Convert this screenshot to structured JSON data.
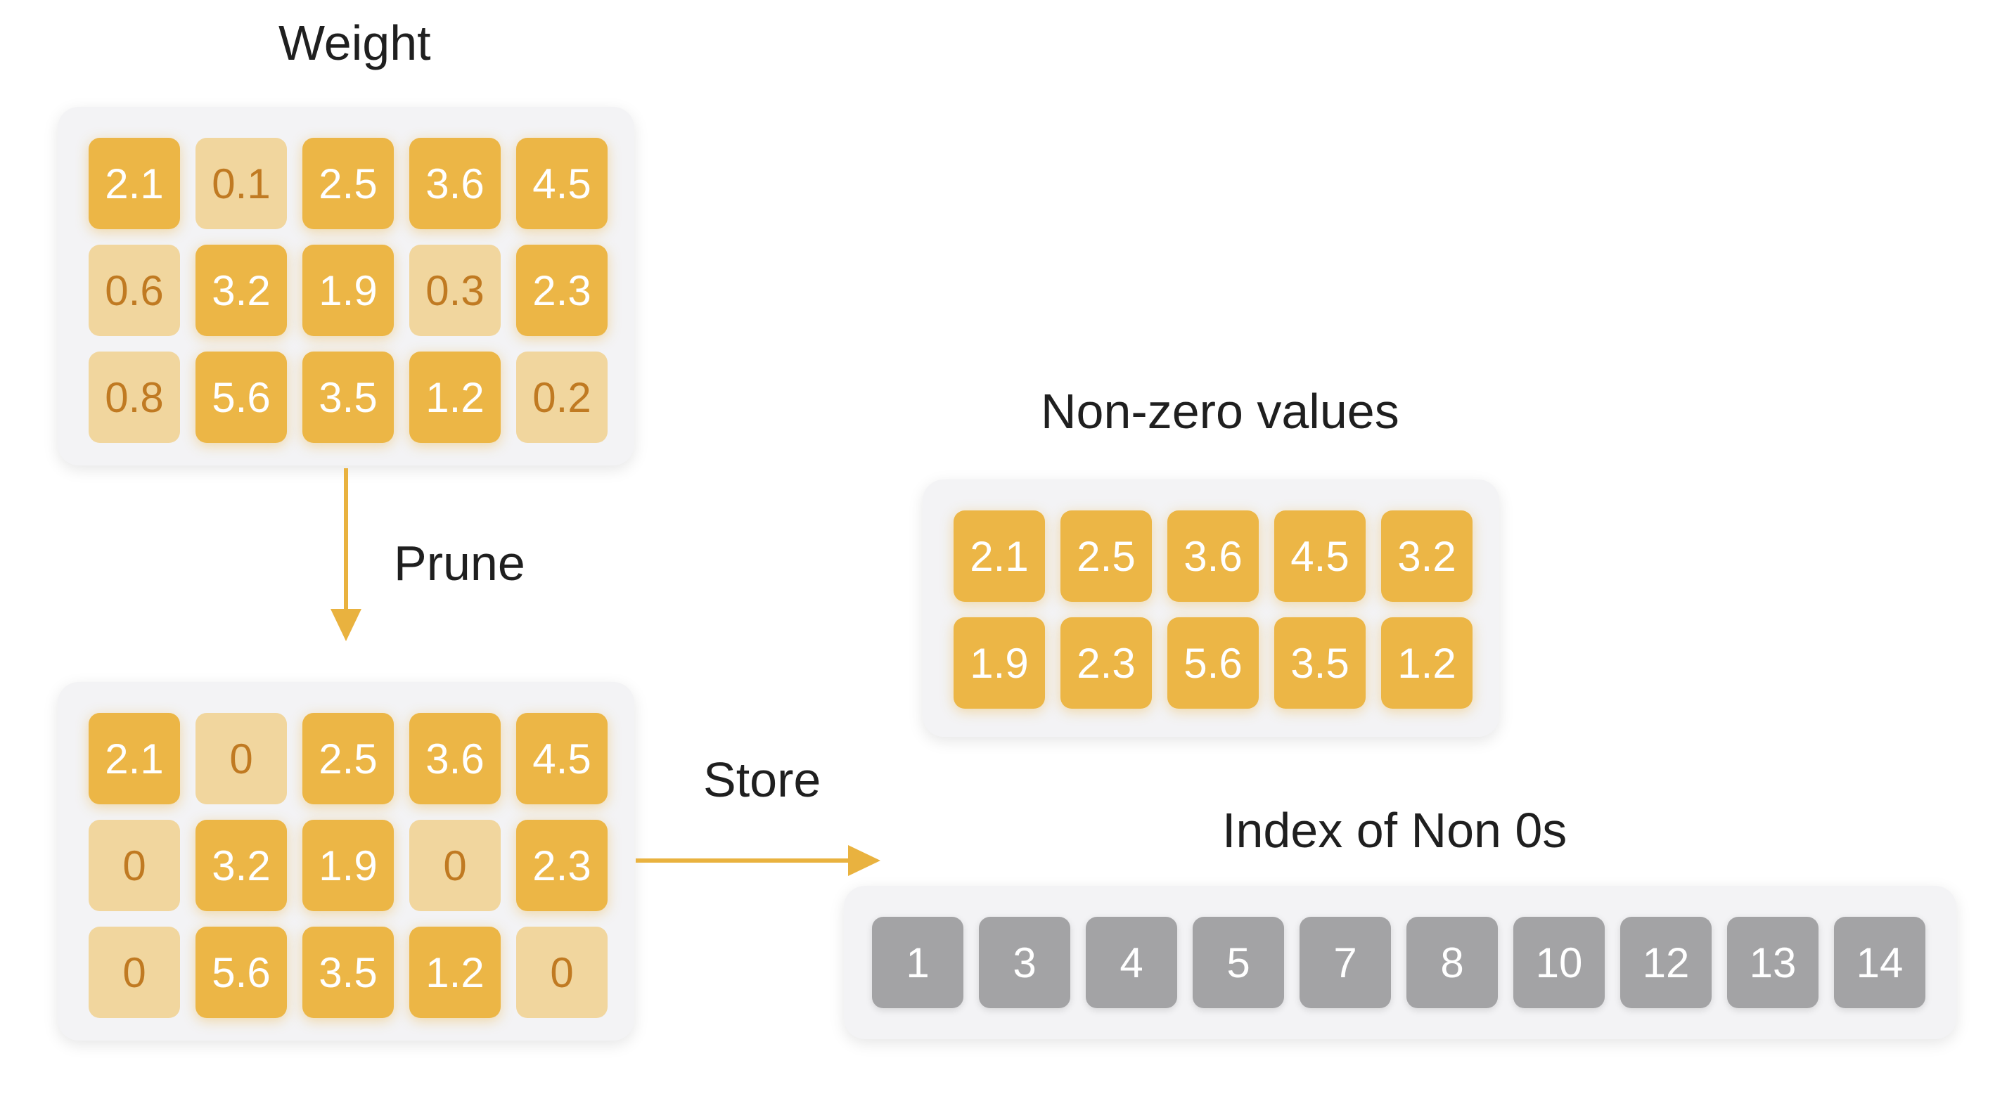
{
  "labels": {
    "weight": "Weight",
    "prune": "Prune",
    "store": "Store",
    "nonzero": "Non-zero values",
    "index": "Index of Non 0s"
  },
  "colors": {
    "kept": "#ecb646",
    "pruned": "#f1d69e",
    "pruned_text": "#c07a22",
    "index": "#a3a3a5",
    "arrow": "#e9b23f"
  },
  "weight_matrix": [
    [
      "2.1",
      "0.1",
      "2.5",
      "3.6",
      "4.5"
    ],
    [
      "0.6",
      "3.2",
      "1.9",
      "0.3",
      "2.3"
    ],
    [
      "0.8",
      "5.6",
      "3.5",
      "1.2",
      "0.2"
    ]
  ],
  "weight_kept": [
    [
      true,
      false,
      true,
      true,
      true
    ],
    [
      false,
      true,
      true,
      false,
      true
    ],
    [
      false,
      true,
      true,
      true,
      false
    ]
  ],
  "pruned_matrix": [
    [
      "2.1",
      "0",
      "2.5",
      "3.6",
      "4.5"
    ],
    [
      "0",
      "3.2",
      "1.9",
      "0",
      "2.3"
    ],
    [
      "0",
      "5.6",
      "3.5",
      "1.2",
      "0"
    ]
  ],
  "nonzero_values": [
    [
      "2.1",
      "2.5",
      "3.6",
      "4.5",
      "3.2"
    ],
    [
      "1.9",
      "2.3",
      "5.6",
      "3.5",
      "1.2"
    ]
  ],
  "nonzero_indices": [
    "1",
    "3",
    "4",
    "5",
    "7",
    "8",
    "10",
    "12",
    "13",
    "14"
  ]
}
